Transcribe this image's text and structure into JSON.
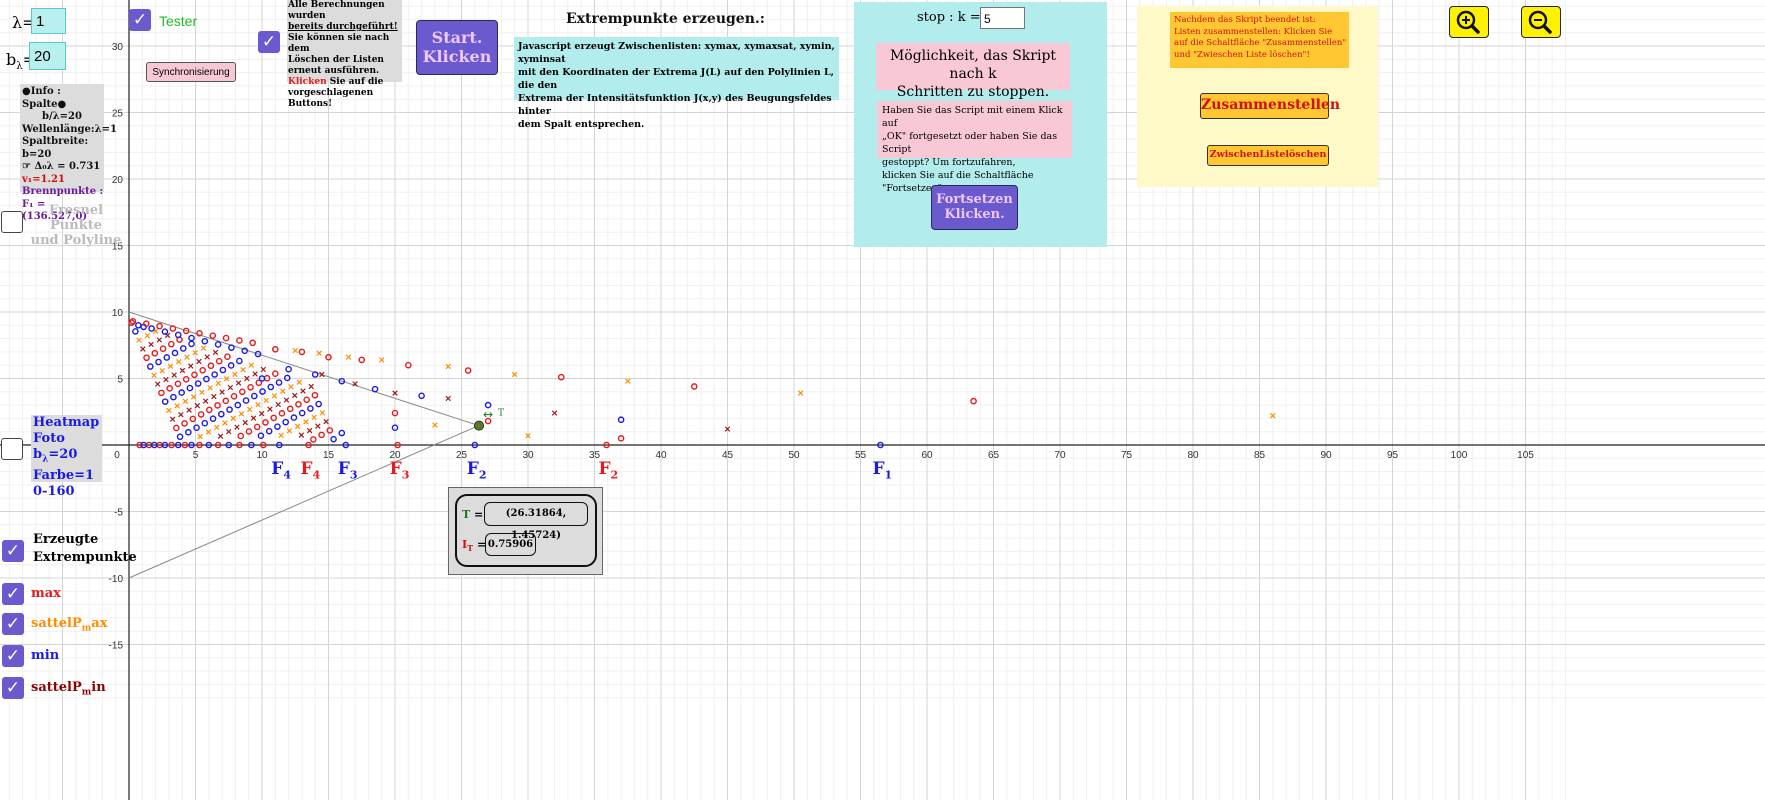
{
  "inputs": {
    "lambda_label": "λ=",
    "lambda_value": "1",
    "b_label": "b",
    "b_sub": "λ",
    "b_eq": "=",
    "b_value": "20"
  },
  "tester": {
    "label": "Tester",
    "checked": true
  },
  "sync_button": "Synchronisierung",
  "info_box": {
    "line1": "●Info : Spalte●",
    "line2": "b/λ=20",
    "line3": "Wellenlänge:λ=1",
    "line4": "Spaltbreite: b=20",
    "line5_arrow": "☞",
    "line5_text": "Δ₀λ = 0.731",
    "line6": "v₁=1.21",
    "line7": "Brennpunkte :",
    "line8": "F₁ = (136.527,0)"
  },
  "fresnel": {
    "line1": "Fresnel Punkte",
    "line2": "und Polyline",
    "checked": false
  },
  "heatmap": {
    "line1": "Heatmap",
    "line2": "Foto b",
    "line2_sub": "λ",
    "line2_tail": "=20",
    "line3": "Farbe=1",
    "line4": "0-160",
    "checked": false
  },
  "notice": {
    "line1": "Alle Berechnungen wurden",
    "line2": "bereits durchgeführt!",
    "line3": "Sie können sie nach dem",
    "line4": "Löschen der Listen",
    "line5": "erneut ausführen.",
    "line6_red": "Klicken",
    "line6_rest": " Sie auf die",
    "line7": "vorgeschlagenen Buttons!",
    "checked": true
  },
  "start_button": {
    "line1": "Start.",
    "line2": "Klicken"
  },
  "extrem": {
    "title": "Extrempunkte erzeugen.:",
    "line1": "Javascript  erzeugt Zwischenlisten: xymax, xymaxsat, xymin, xyminsat",
    "line2": "mit den Koordinaten der Extrema J(L) auf den Polylinien L, die den",
    "line3": "Extrema der Intensitätsfunktion J(x,y) des Beugungsfeldes hinter",
    "line4": "dem Spalt entsprechen."
  },
  "stop_panel": {
    "stop_label": "stop :  k =",
    "k_value": "5",
    "option_line1": "Möglichkeit, das Skript nach k",
    "option_line2": "Schritten zu stoppen.",
    "msg_line1": "Haben Sie das Script mit einem Klick auf",
    "msg_line2": "„OK\" fortgesetzt oder haben Sie das Script",
    "msg_line3": "gestoppt? Um fortzufahren,",
    "msg_line4": "klicken Sie auf die Schaltfläche \"Fortsetzen\".",
    "continue_line1": "Fortsetzen",
    "continue_line2": "Klicken."
  },
  "yellow_panel": {
    "note_line1": "Nachdem das Skript beendet ist:",
    "note_line2": "Listen zusammenstellen: Klicken Sie",
    "note_line3": "auf die Schaltfläche \"Zusammenstellen\"",
    "note_line4": "und \"Zwieschen Liste löschen\"!",
    "assemble_button": "Zusammenstellen",
    "delete_button": "ZwischenListelöschen"
  },
  "zoom": {
    "in_icon": "zoom-in-icon",
    "out_icon": "zoom-out-icon"
  },
  "T_box": {
    "T_label": "T",
    "T_eq": " =",
    "T_value": "(26.31864, 1.45724)",
    "I_label": "I",
    "I_sub": "T",
    "I_eq": " =",
    "I_value": "0.75906"
  },
  "point_T_label": "T",
  "focus_labels": [
    {
      "name": "F",
      "sub": "4",
      "color": "#1a1ae6",
      "x": 11.3
    },
    {
      "name": "F",
      "sub": "4",
      "color": "#e61a1a",
      "x": 13.5
    },
    {
      "name": "F",
      "sub": "3",
      "color": "#1a1ae6",
      "x": 16.3
    },
    {
      "name": "F",
      "sub": "3",
      "color": "#e61a1a",
      "x": 20.2
    },
    {
      "name": "F",
      "sub": "2",
      "color": "#1a1ae6",
      "x": 26.0
    },
    {
      "name": "F",
      "sub": "2",
      "color": "#e61a1a",
      "x": 35.9
    },
    {
      "name": "F",
      "sub": "1",
      "color": "#1a1ae6",
      "x": 56.5
    }
  ],
  "legend": {
    "erzeugt_line1": "Erzeugte",
    "erzeugt_line2": "Extrempunkte",
    "items": [
      {
        "key": "max",
        "label": "max",
        "color": "#e61a1a",
        "checked": true
      },
      {
        "key": "sattelmax",
        "label_pre": "sattelP",
        "label_sub": "m",
        "label_post": "ax",
        "color": "#ff8c00",
        "checked": true
      },
      {
        "key": "min",
        "label": "min",
        "color": "#1a1ae6",
        "checked": true
      },
      {
        "key": "sattelmin",
        "label_pre": "sattelP",
        "label_sub": "m",
        "label_post": "in",
        "color": "#8b0000",
        "checked": true
      }
    ]
  },
  "colors": {
    "max": "#e61a1a",
    "sattelmax": "#ff8c00",
    "min": "#1a1ae6",
    "sattelmin": "#a01818",
    "button_purple": "#6a5acd",
    "cyan_panel": "#b3ecec",
    "yellow_panel": "#fff9c8"
  },
  "chart_data": {
    "type": "scatter",
    "xlim": [
      -9.6,
      108.6
    ],
    "ylim": [
      -19.4,
      33.9
    ],
    "x_ticks": [
      5,
      10,
      15,
      20,
      25,
      30,
      35,
      40,
      45,
      50,
      55,
      60,
      65,
      70,
      75,
      80,
      85,
      90,
      95,
      100,
      105
    ],
    "y_ticks": [
      -15,
      -10,
      -5,
      5,
      10,
      15,
      20,
      25,
      30
    ],
    "origin_label": "0",
    "grid": true,
    "triangle_lines": [
      {
        "from": [
          0,
          10
        ],
        "to": [
          26.3,
          1.46
        ]
      },
      {
        "from": [
          0,
          -10
        ],
        "to": [
          26.3,
          1.46
        ]
      }
    ],
    "point_T": [
      26.31864,
      1.45724
    ],
    "series": {
      "max_sample": [
        [
          11,
          7.2
        ],
        [
          13,
          7
        ],
        [
          15,
          6.6
        ],
        [
          17.5,
          6.4
        ],
        [
          21,
          6
        ],
        [
          25.5,
          5.6
        ],
        [
          32.5,
          5.1
        ],
        [
          42.5,
          4.4
        ],
        [
          63.5,
          3.3
        ],
        [
          20,
          2.4
        ],
        [
          27,
          1.8
        ],
        [
          37,
          0.5
        ]
      ],
      "sattelmax_sample": [
        [
          12.5,
          7.1
        ],
        [
          14.3,
          6.9
        ],
        [
          16.5,
          6.6
        ],
        [
          19,
          6.4
        ],
        [
          24,
          5.9
        ],
        [
          29,
          5.3
        ],
        [
          37.5,
          4.8
        ],
        [
          50.5,
          3.9
        ],
        [
          86,
          2.2
        ],
        [
          30,
          0.7
        ],
        [
          23,
          1.5
        ]
      ],
      "min_sample": [
        [
          10,
          5
        ],
        [
          12,
          5.7
        ],
        [
          14,
          5.3
        ],
        [
          16,
          4.8
        ],
        [
          18.5,
          4.2
        ],
        [
          22,
          3.7
        ],
        [
          27,
          3
        ],
        [
          37,
          1.9
        ],
        [
          20,
          1.3
        ],
        [
          16,
          0.9
        ]
      ],
      "sattelmin_sample": [
        [
          14.5,
          5.3
        ],
        [
          17,
          4.6
        ],
        [
          20,
          3.9
        ],
        [
          24,
          3.5
        ],
        [
          32,
          2.4
        ],
        [
          45,
          1.2
        ]
      ],
      "axis_zeros_max": [
        0.8,
        1.5,
        2.3,
        3.2,
        4.2,
        5.3,
        6.7,
        8.3,
        10.1,
        13.5,
        20.2,
        35.9
      ],
      "axis_zeros_min": [
        1.1,
        1.9,
        2.7,
        3.7,
        4.7,
        6,
        7.5,
        9.2,
        11.3,
        16.3,
        26,
        56.5
      ]
    }
  }
}
